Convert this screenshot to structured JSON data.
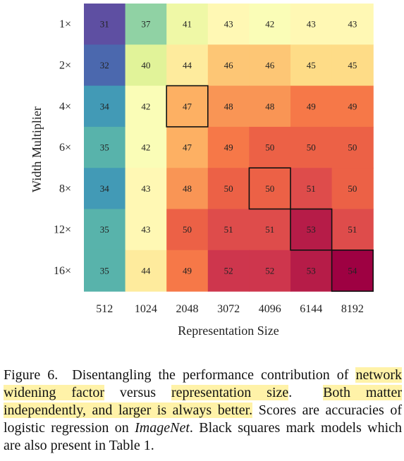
{
  "chart_data": {
    "type": "heatmap",
    "xlabel": "Representation Size",
    "ylabel": "Width Multiplier",
    "x_categories": [
      "512",
      "1024",
      "2048",
      "3072",
      "4096",
      "6144",
      "8192"
    ],
    "y_categories": [
      "1×",
      "2×",
      "4×",
      "6×",
      "8×",
      "12×",
      "16×"
    ],
    "values": [
      [
        31,
        37,
        41,
        43,
        42,
        43,
        43
      ],
      [
        32,
        40,
        44,
        46,
        46,
        45,
        45
      ],
      [
        34,
        42,
        47,
        48,
        48,
        49,
        49
      ],
      [
        35,
        42,
        47,
        49,
        50,
        50,
        50
      ],
      [
        34,
        43,
        48,
        50,
        50,
        51,
        50
      ],
      [
        35,
        43,
        50,
        51,
        51,
        53,
        51
      ],
      [
        35,
        44,
        49,
        52,
        52,
        53,
        54
      ]
    ],
    "marked_cells": [
      [
        2,
        2
      ],
      [
        4,
        4
      ],
      [
        5,
        5
      ],
      [
        6,
        6
      ]
    ],
    "colormap": "Spectral_r",
    "value_range": [
      31,
      54
    ]
  },
  "caption": {
    "figure_label": "Figure 6.",
    "s1": "Disentangling the performance contribution of",
    "h1": "network widening factor",
    "s2": "versus",
    "h2": "representation size",
    "s3": ".",
    "h3": "Both matter independently, and larger is always better.",
    "s4": "Scores are accuracies of logistic regression on",
    "it1": "ImageNet",
    "s5": ". Black squares mark models which are also present in Table 1."
  }
}
